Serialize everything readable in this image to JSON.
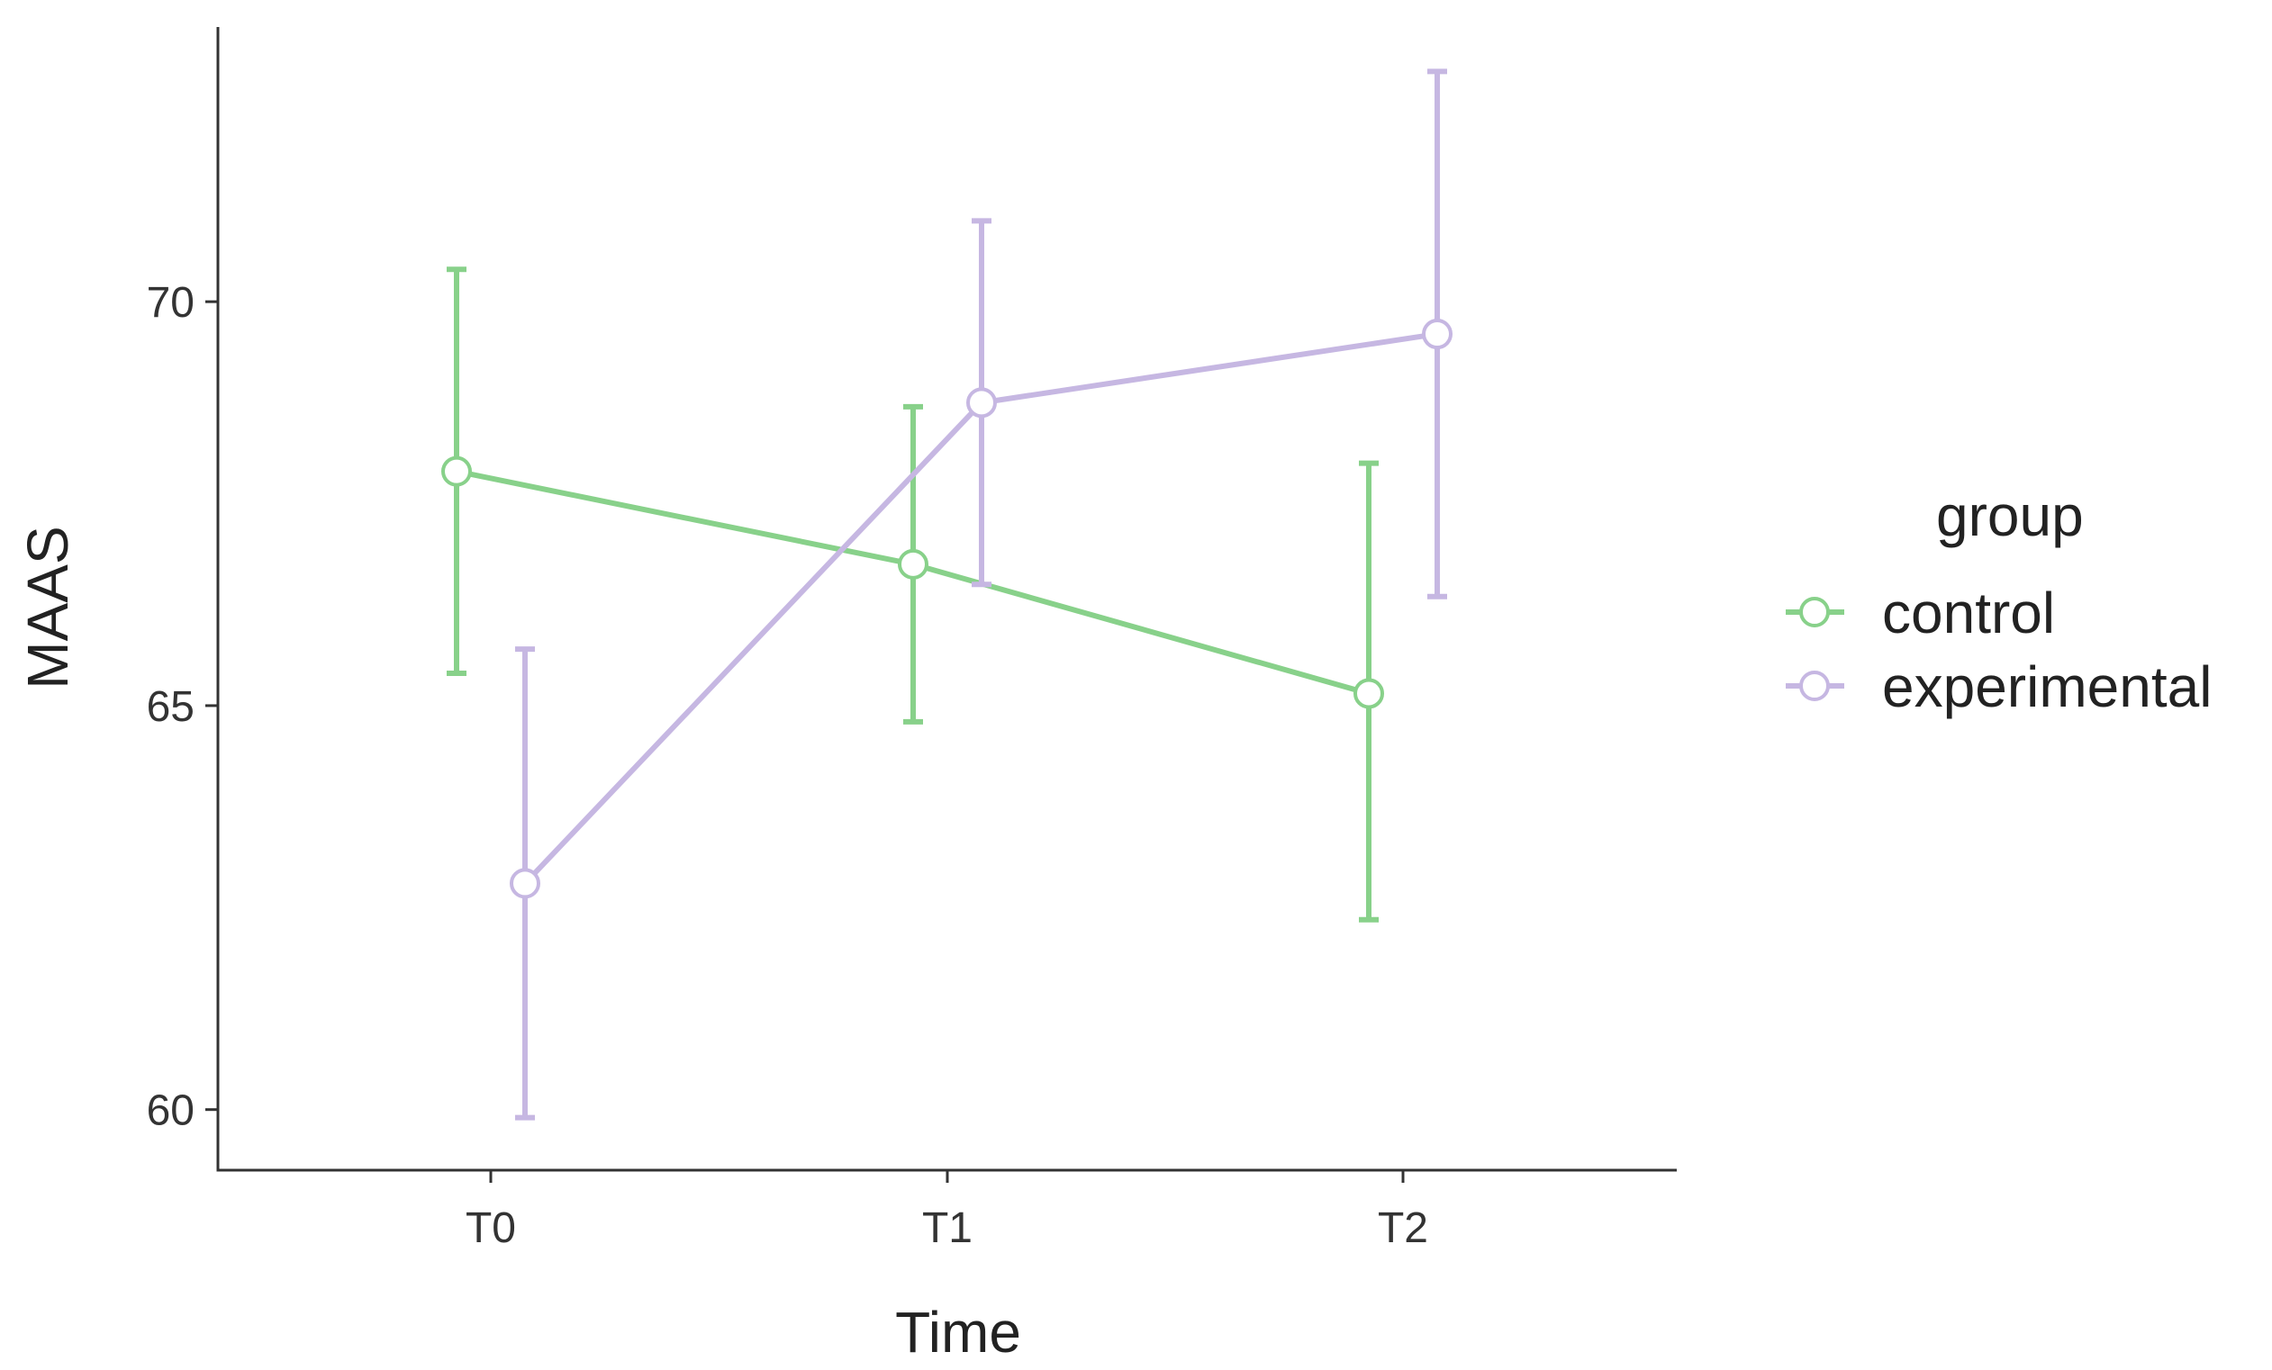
{
  "chart_data": {
    "type": "line",
    "categories": [
      "T0",
      "T1",
      "T2"
    ],
    "xlabel": "Time",
    "ylabel": "MAAS",
    "yticks": [
      60,
      65,
      70
    ],
    "ylim": [
      59.25,
      73.4
    ],
    "grid": false,
    "legend": {
      "title": "group",
      "placement": "right"
    },
    "series": [
      {
        "name": "control",
        "color": "#88D18A",
        "values": [
          67.9,
          66.75,
          65.15
        ],
        "lower": [
          65.4,
          64.8,
          62.35
        ],
        "upper": [
          70.4,
          68.7,
          68.0
        ]
      },
      {
        "name": "experimental",
        "color": "#C6B7E2",
        "values": [
          62.8,
          68.75,
          69.6
        ],
        "lower": [
          59.9,
          66.5,
          66.35
        ],
        "upper": [
          65.7,
          71.0,
          72.85
        ]
      }
    ]
  }
}
